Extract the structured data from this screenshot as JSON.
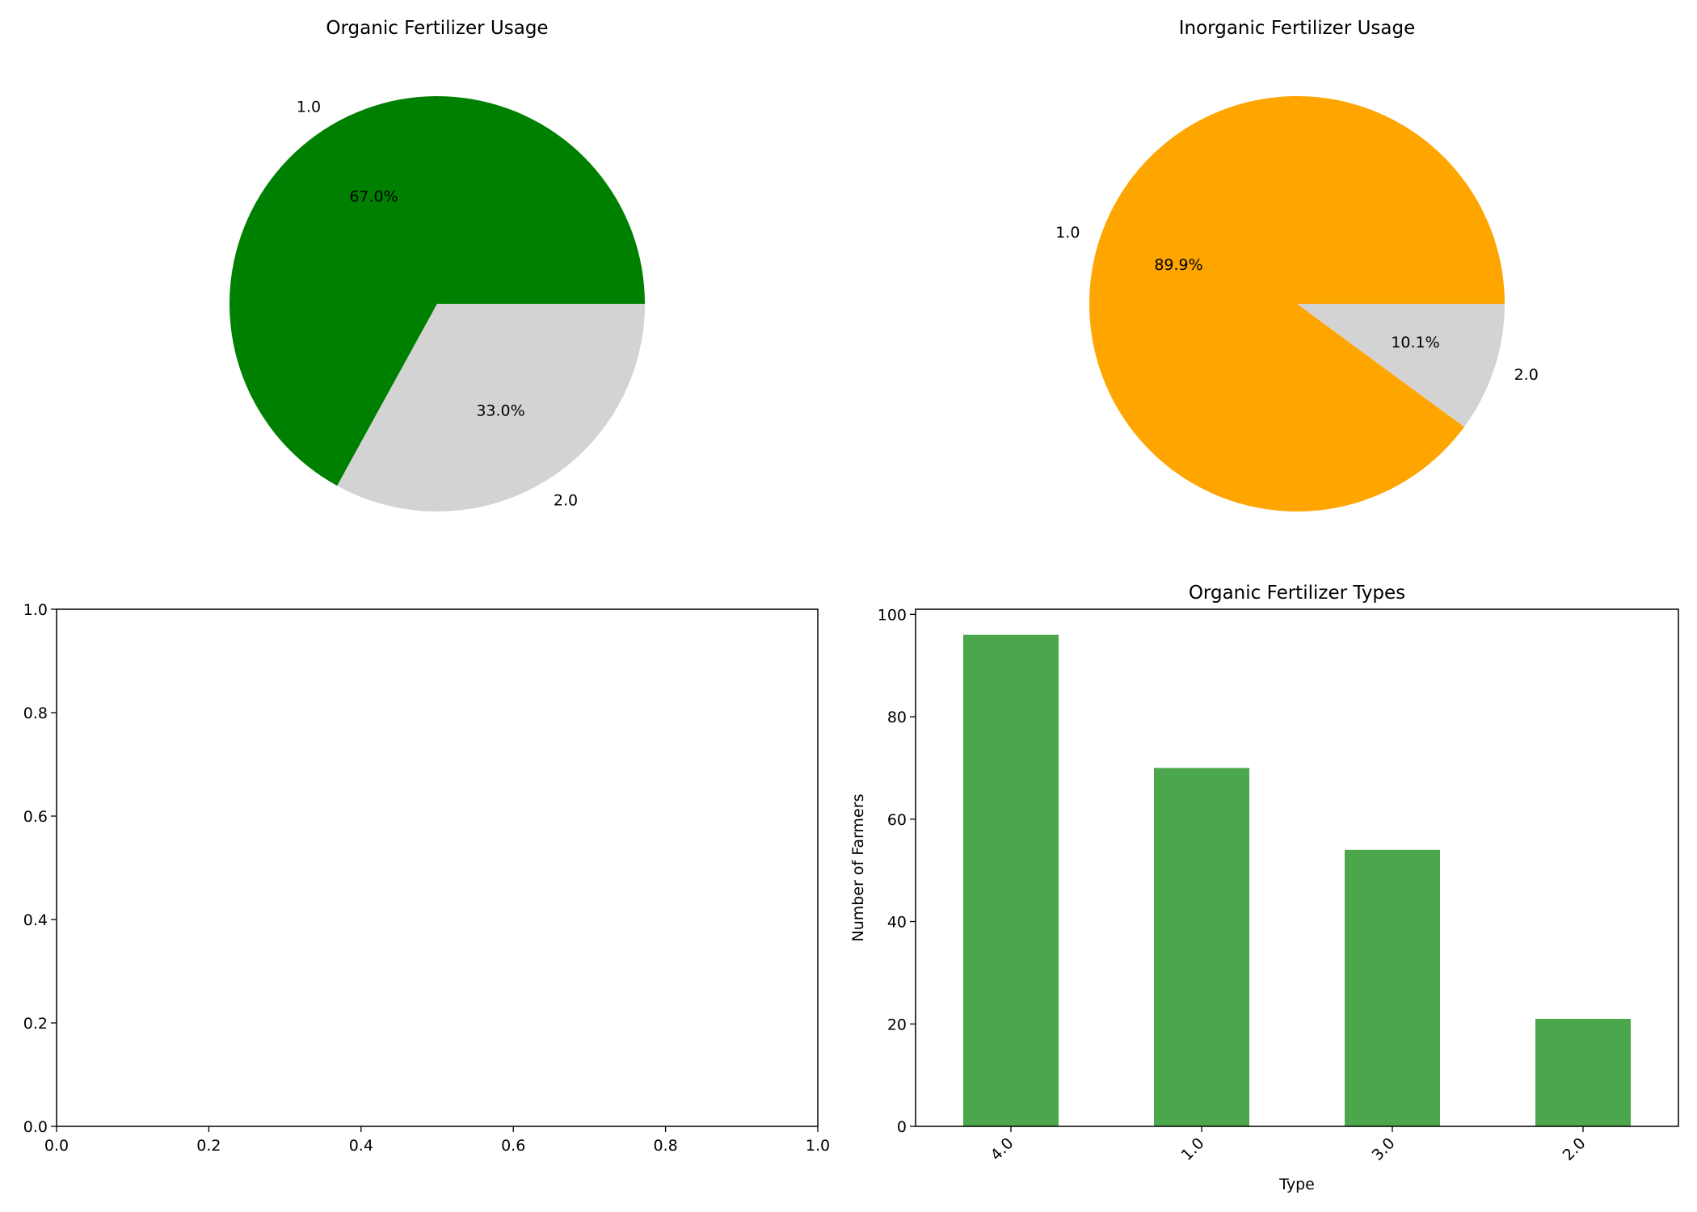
{
  "chart_data": [
    {
      "type": "pie",
      "title": "Organic Fertilizer Usage",
      "labels": [
        "1.0",
        "2.0"
      ],
      "values": [
        67.0,
        33.0
      ],
      "pct_labels": [
        "67.0%",
        "33.0%"
      ],
      "colors": [
        "#008000",
        "#d3d3d3"
      ]
    },
    {
      "type": "pie",
      "title": "Inorganic Fertilizer Usage",
      "labels": [
        "1.0",
        "2.0"
      ],
      "values": [
        89.9,
        10.1
      ],
      "pct_labels": [
        "89.9%",
        "10.1%"
      ],
      "colors": [
        "#ffa500",
        "#d3d3d3"
      ]
    },
    {
      "type": "empty",
      "title": "",
      "xlim": [
        0,
        1
      ],
      "ylim": [
        0,
        1
      ],
      "xticks": [
        "0.0",
        "0.2",
        "0.4",
        "0.6",
        "0.8",
        "1.0"
      ],
      "yticks": [
        "0.0",
        "0.2",
        "0.4",
        "0.6",
        "0.8",
        "1.0"
      ]
    },
    {
      "type": "bar",
      "title": "Organic Fertilizer Types",
      "categories": [
        "4.0",
        "1.0",
        "3.0",
        "2.0"
      ],
      "values": [
        96,
        70,
        54,
        21
      ],
      "xlabel": "Type",
      "ylabel": "Number of Farmers",
      "ylim": [
        0,
        101
      ],
      "yticks": [
        "0",
        "20",
        "40",
        "60",
        "80",
        "100"
      ],
      "color": "#4ca64c"
    }
  ]
}
